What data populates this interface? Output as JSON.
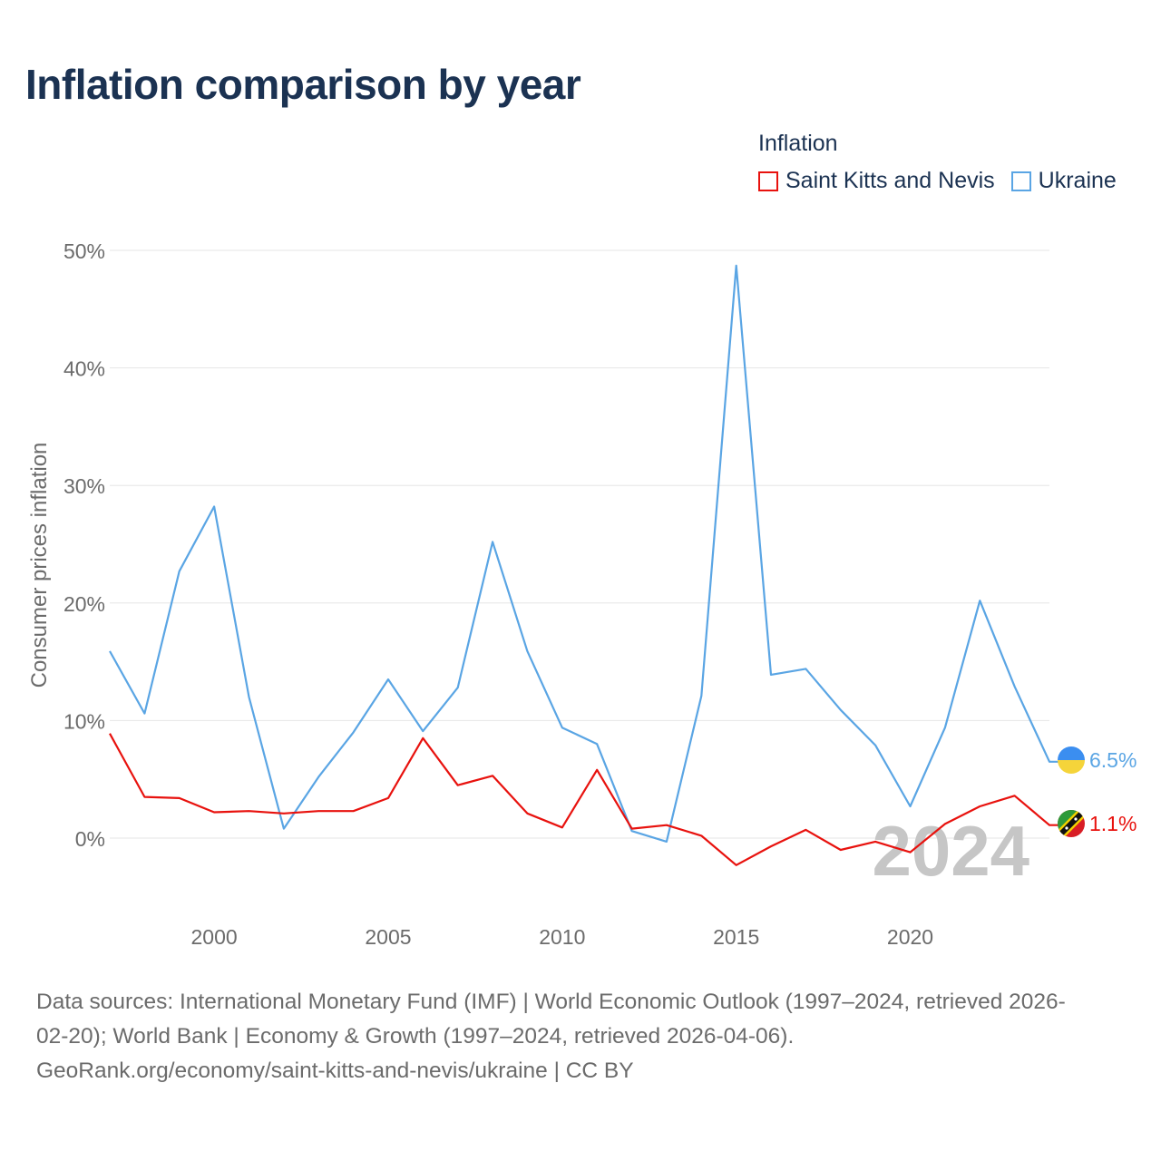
{
  "title": "Inflation comparison by year",
  "legend": {
    "title": "Inflation",
    "items": [
      {
        "label": "Saint Kitts and Nevis",
        "color": "#e8120e"
      },
      {
        "label": "Ukraine",
        "color": "#5aa5e4"
      }
    ]
  },
  "chart_data": {
    "type": "line",
    "title": "Inflation comparison by year",
    "ylabel": "Consumer prices inflation",
    "xlabel": "",
    "ylim": [
      -5,
      50
    ],
    "xlim": [
      1997,
      2024
    ],
    "yticks": [
      0,
      10,
      20,
      30,
      40,
      50
    ],
    "ytick_labels": [
      "0%",
      "10%",
      "20%",
      "30%",
      "40%",
      "50%"
    ],
    "xticks": [
      2000,
      2005,
      2010,
      2015,
      2020
    ],
    "xtick_labels": [
      "2000",
      "2005",
      "2010",
      "2015",
      "2020"
    ],
    "grid": true,
    "year_watermark": "2024",
    "x": [
      1997,
      1998,
      1999,
      2000,
      2001,
      2002,
      2003,
      2004,
      2005,
      2006,
      2007,
      2008,
      2009,
      2010,
      2011,
      2012,
      2013,
      2014,
      2015,
      2016,
      2017,
      2018,
      2019,
      2020,
      2021,
      2022,
      2023,
      2024
    ],
    "series": [
      {
        "name": "Ukraine",
        "color": "#5aa5e4",
        "end_label": "6.5%",
        "values": [
          15.9,
          10.6,
          22.7,
          28.2,
          12.0,
          0.8,
          5.2,
          9.0,
          13.5,
          9.1,
          12.8,
          25.2,
          15.9,
          9.4,
          8.0,
          0.6,
          -0.3,
          12.1,
          48.7,
          13.9,
          14.4,
          10.9,
          7.9,
          2.7,
          9.4,
          20.2,
          12.9,
          6.5
        ]
      },
      {
        "name": "Saint Kitts and Nevis",
        "color": "#e8120e",
        "end_label": "1.1%",
        "values": [
          8.9,
          3.5,
          3.4,
          2.2,
          2.3,
          2.1,
          2.3,
          2.3,
          3.4,
          8.5,
          4.5,
          5.3,
          2.1,
          0.9,
          5.8,
          0.8,
          1.1,
          0.2,
          -2.3,
          -0.7,
          0.7,
          -1.0,
          -0.3,
          -1.2,
          1.2,
          2.7,
          3.6,
          1.1
        ]
      }
    ]
  },
  "footer": {
    "line1": "Data sources: International Monetary Fund (IMF) | World Economic Outlook (1997–2024, retrieved 2026-",
    "line2": "02-20); World Bank | Economy & Growth (1997–2024, retrieved 2026-04-06).",
    "line3": "GeoRank.org/economy/saint-kitts-and-nevis/ukraine | CC BY"
  }
}
